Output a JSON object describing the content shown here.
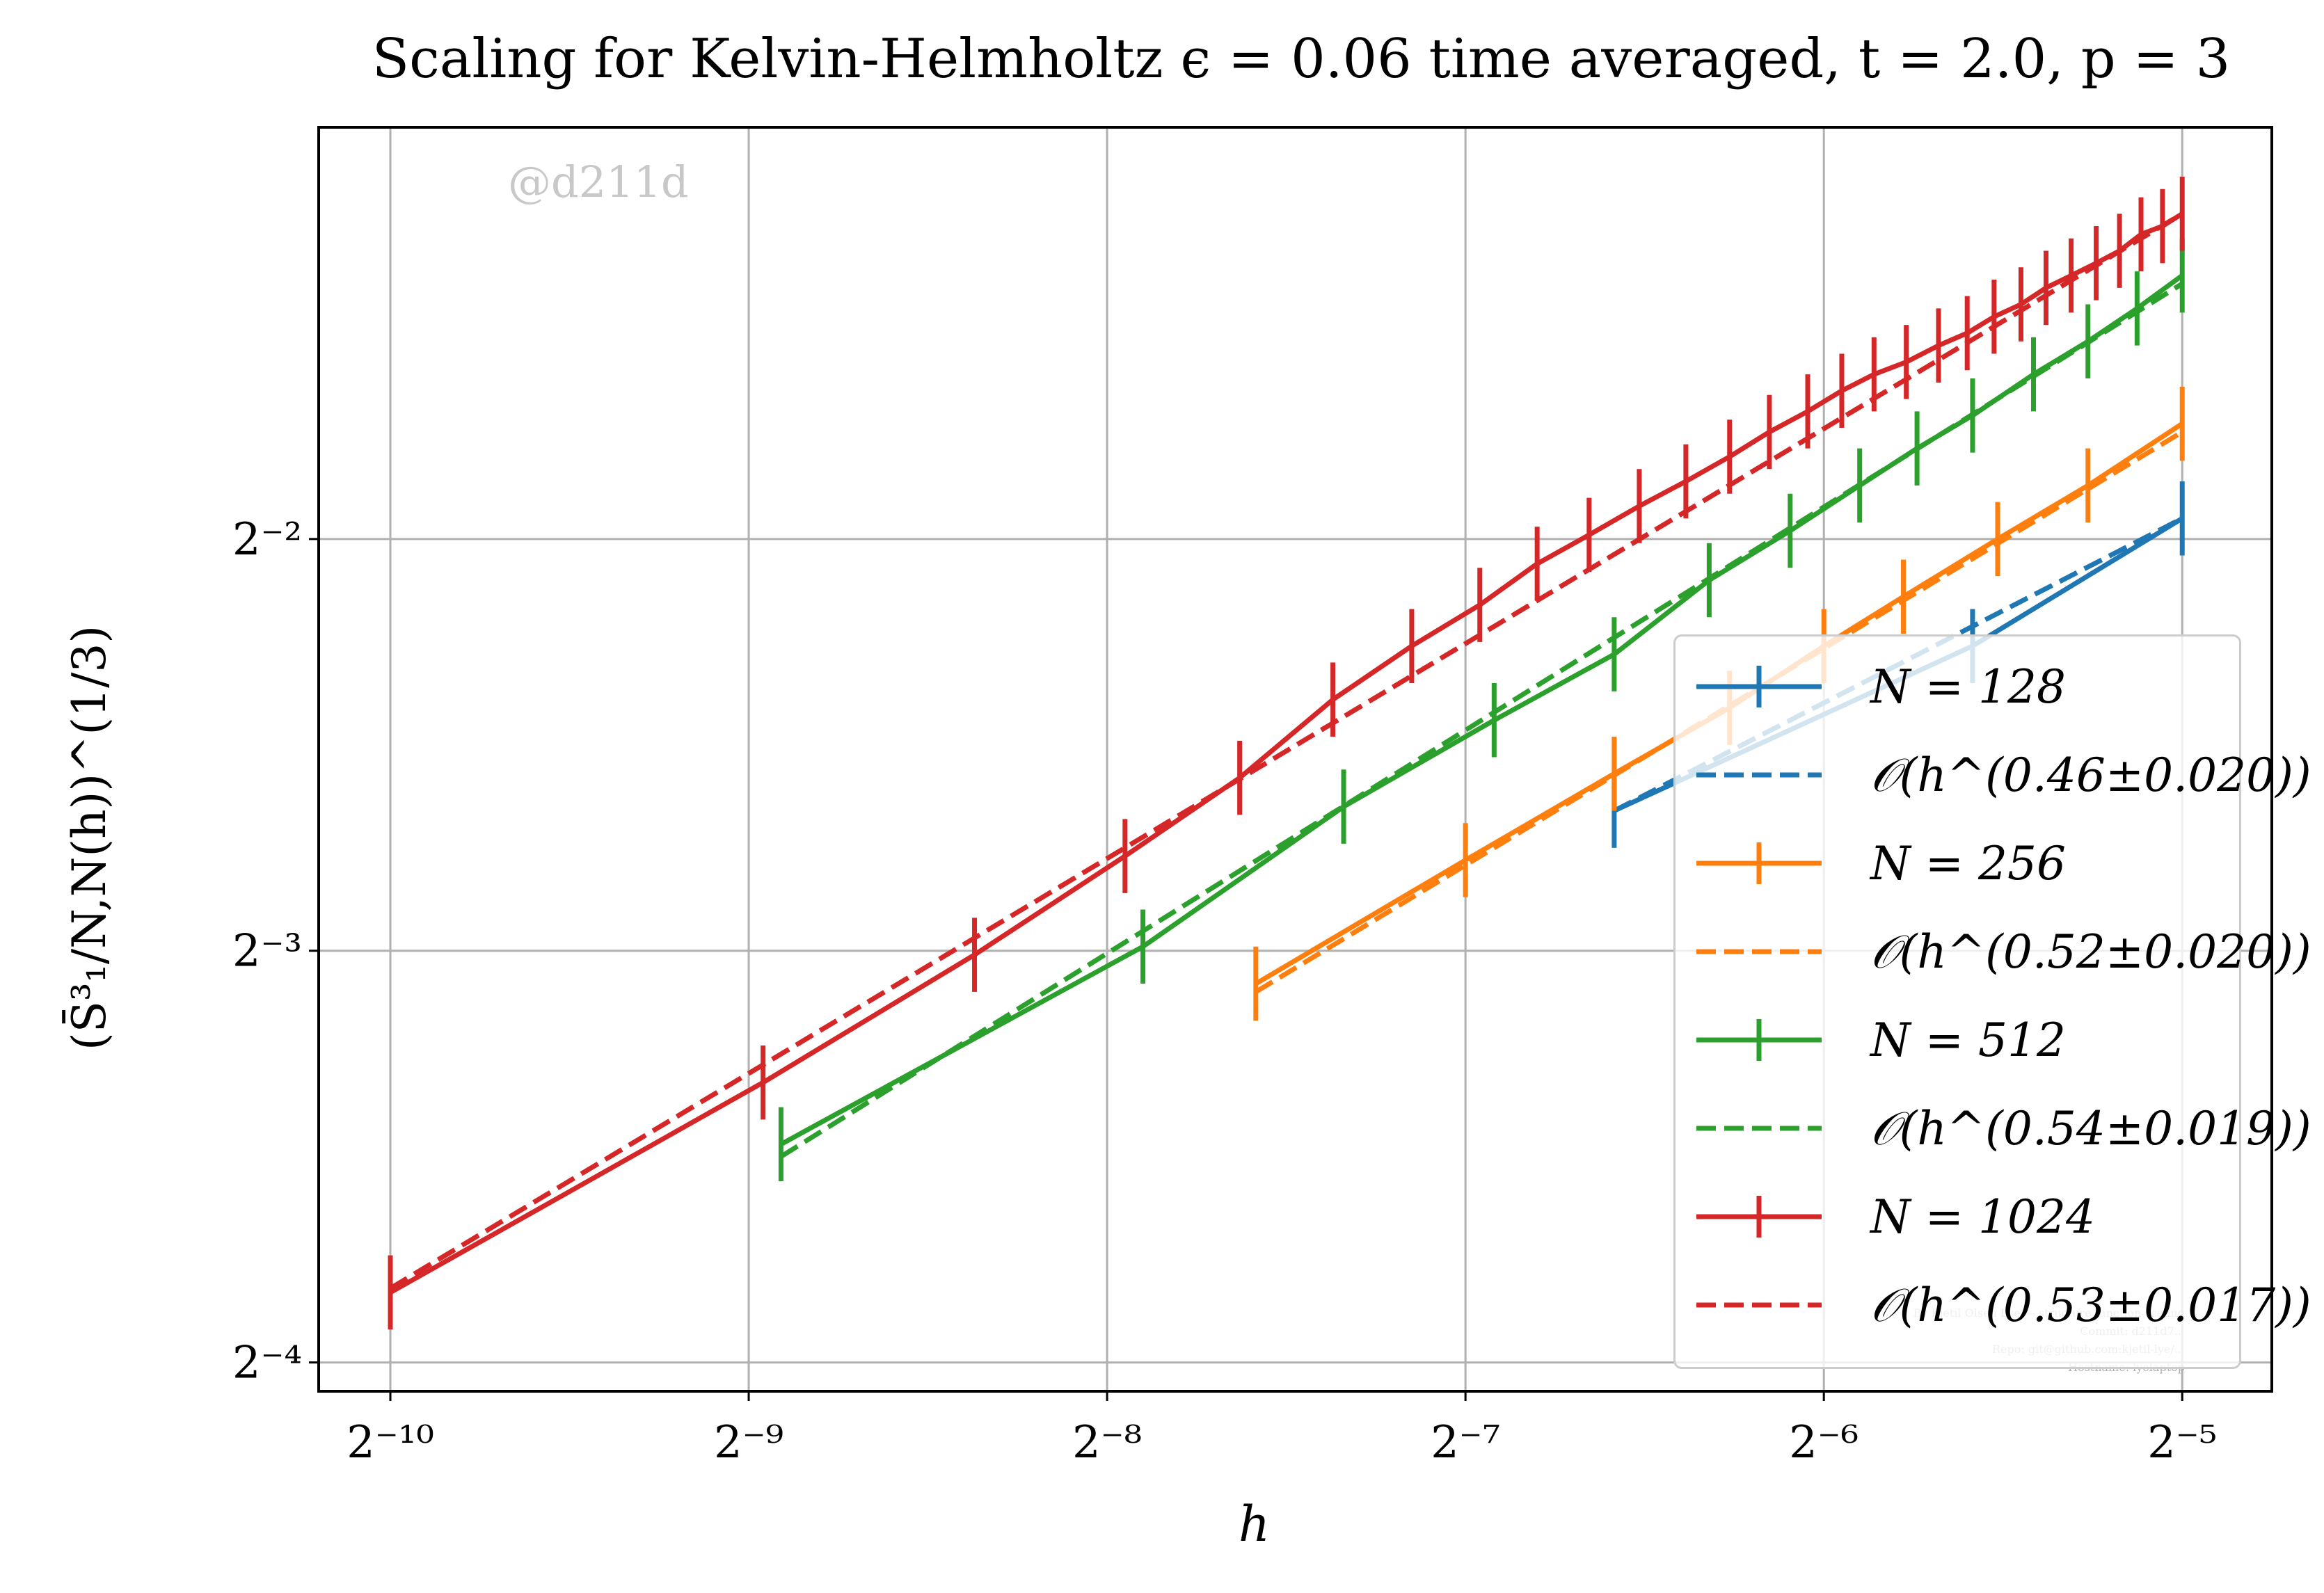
{
  "chart_data": {
    "type": "line",
    "title": "Scaling for Kelvin-Helmholtz ϵ = 0.06 time averaged, t = 2.0, p = 3",
    "xlabel": "h",
    "ylabel": "(S̄³₁/N,N(h))^(1/3)",
    "x_scale": "log2",
    "y_scale": "log2",
    "xlim_log2": [
      -10.2,
      -4.75
    ],
    "ylim_log2": [
      -4.07,
      -1.0
    ],
    "x_ticks": [
      {
        "exp": -10,
        "label": "2⁻¹⁰"
      },
      {
        "exp": -9,
        "label": "2⁻⁹"
      },
      {
        "exp": -8,
        "label": "2⁻⁸"
      },
      {
        "exp": -7,
        "label": "2⁻⁷"
      },
      {
        "exp": -6,
        "label": "2⁻⁶"
      },
      {
        "exp": -5,
        "label": "2⁻⁵"
      }
    ],
    "y_ticks": [
      {
        "exp": -4,
        "label": "2⁻⁴"
      },
      {
        "exp": -3,
        "label": "2⁻³"
      },
      {
        "exp": -2,
        "label": "2⁻²"
      }
    ],
    "grid": true,
    "legend_position": "lower right",
    "series": [
      {
        "name": "N = 128",
        "label": "N = 128",
        "color": "#1f77b4",
        "style": "solid",
        "errorbars": true,
        "x_log2": [
          -6.585,
          -5.585,
          -5.0
        ],
        "y_log2": [
          -2.66,
          -2.26,
          -1.95
        ],
        "err_log2": [
          0.09,
          0.09,
          0.09
        ]
      },
      {
        "name": "N = 128 fit",
        "label": "𝒪(h^(0.46±0.020))",
        "color": "#1f77b4",
        "style": "dashed",
        "x_log2": [
          -6.585,
          -5.0
        ],
        "y_log2": [
          -2.66,
          -1.95
        ]
      },
      {
        "name": "N = 256",
        "label": "N = 256",
        "color": "#ff7f0e",
        "style": "solid",
        "errorbars": true,
        "x_log2": [
          -7.585,
          -7.0,
          -6.585,
          -6.263,
          -6.0,
          -5.778,
          -5.515,
          -5.263,
          -5.0
        ],
        "y_log2": [
          -3.08,
          -2.78,
          -2.57,
          -2.41,
          -2.26,
          -2.14,
          -2.0,
          -1.87,
          -1.72
        ],
        "err_log2": [
          0.09,
          0.09,
          0.09,
          0.09,
          0.09,
          0.09,
          0.09,
          0.09,
          0.09
        ]
      },
      {
        "name": "N = 256 fit",
        "label": "𝒪(h^(0.52±0.020))",
        "color": "#ff7f0e",
        "style": "dashed",
        "x_log2": [
          -7.585,
          -5.0
        ],
        "y_log2": [
          -3.1,
          -1.74
        ]
      },
      {
        "name": "N = 512",
        "label": "N = 512",
        "color": "#2ca02c",
        "style": "solid",
        "errorbars": true,
        "x_log2": [
          -8.91,
          -7.9,
          -7.34,
          -6.92,
          -6.585,
          -6.32,
          -6.094,
          -5.9,
          -5.74,
          -5.585,
          -5.415,
          -5.263,
          -5.126,
          -5.0
        ],
        "y_log2": [
          -3.47,
          -2.99,
          -2.65,
          -2.44,
          -2.28,
          -2.1,
          -1.98,
          -1.87,
          -1.78,
          -1.7,
          -1.6,
          -1.52,
          -1.44,
          -1.36
        ],
        "err_log2": [
          0.09,
          0.09,
          0.09,
          0.09,
          0.09,
          0.09,
          0.09,
          0.09,
          0.09,
          0.09,
          0.09,
          0.09,
          0.09,
          0.09
        ]
      },
      {
        "name": "N = 512 fit",
        "label": "𝒪(h^(0.54±0.019))",
        "color": "#2ca02c",
        "style": "dashed",
        "x_log2": [
          -8.91,
          -5.0
        ],
        "y_log2": [
          -3.5,
          -1.38
        ]
      },
      {
        "name": "N = 1024",
        "label": "N = 1024",
        "color": "#d62728",
        "style": "solid",
        "errorbars": true,
        "x_log2": [
          -10.0,
          -8.96,
          -8.37,
          -7.95,
          -7.63,
          -7.37,
          -7.15,
          -6.96,
          -6.8,
          -6.655,
          -6.515,
          -6.385,
          -6.263,
          -6.152,
          -6.045,
          -5.95,
          -5.86,
          -5.77,
          -5.68,
          -5.6,
          -5.525,
          -5.45,
          -5.38,
          -5.31,
          -5.24,
          -5.175,
          -5.115,
          -5.055,
          -5.0
        ],
        "y_log2": [
          -3.83,
          -3.32,
          -3.01,
          -2.77,
          -2.58,
          -2.39,
          -2.26,
          -2.16,
          -2.06,
          -1.99,
          -1.92,
          -1.86,
          -1.8,
          -1.74,
          -1.69,
          -1.64,
          -1.6,
          -1.57,
          -1.53,
          -1.5,
          -1.46,
          -1.43,
          -1.39,
          -1.36,
          -1.33,
          -1.3,
          -1.26,
          -1.24,
          -1.21
        ],
        "err_log2": [
          0.09,
          0.09,
          0.09,
          0.09,
          0.09,
          0.09,
          0.09,
          0.09,
          0.09,
          0.09,
          0.09,
          0.09,
          0.09,
          0.09,
          0.09,
          0.09,
          0.09,
          0.09,
          0.09,
          0.09,
          0.09,
          0.09,
          0.09,
          0.09,
          0.09,
          0.09,
          0.09,
          0.09,
          0.09
        ]
      },
      {
        "name": "N = 1024 fit",
        "label": "𝒪(h^(0.53±0.017))",
        "color": "#d62728",
        "style": "dashed",
        "x_log2": [
          -10.0,
          -5.0
        ],
        "y_log2": [
          -3.82,
          -1.21
        ]
      }
    ]
  },
  "watermark": "@d211d",
  "credits": [
    "By Kjetil Olsen Lye — structure function scaling",
    "Commit: d211d7...",
    "Repo: git@github.com:kjetil-lye/...",
    "Hostname: lyelaptop"
  ],
  "legend": [
    {
      "label": "N = 128",
      "color": "#1f77b4",
      "style": "solid"
    },
    {
      "label": "𝒪(h^(0.46±0.020))",
      "color": "#1f77b4",
      "style": "dashed"
    },
    {
      "label": "N = 256",
      "color": "#ff7f0e",
      "style": "solid"
    },
    {
      "label": "𝒪(h^(0.52±0.020))",
      "color": "#ff7f0e",
      "style": "dashed"
    },
    {
      "label": "N = 512",
      "color": "#2ca02c",
      "style": "solid"
    },
    {
      "label": "𝒪(h^(0.54±0.019))",
      "color": "#2ca02c",
      "style": "dashed"
    },
    {
      "label": "N = 1024",
      "color": "#d62728",
      "style": "solid"
    },
    {
      "label": "𝒪(h^(0.53±0.017))",
      "color": "#d62728",
      "style": "dashed"
    }
  ]
}
